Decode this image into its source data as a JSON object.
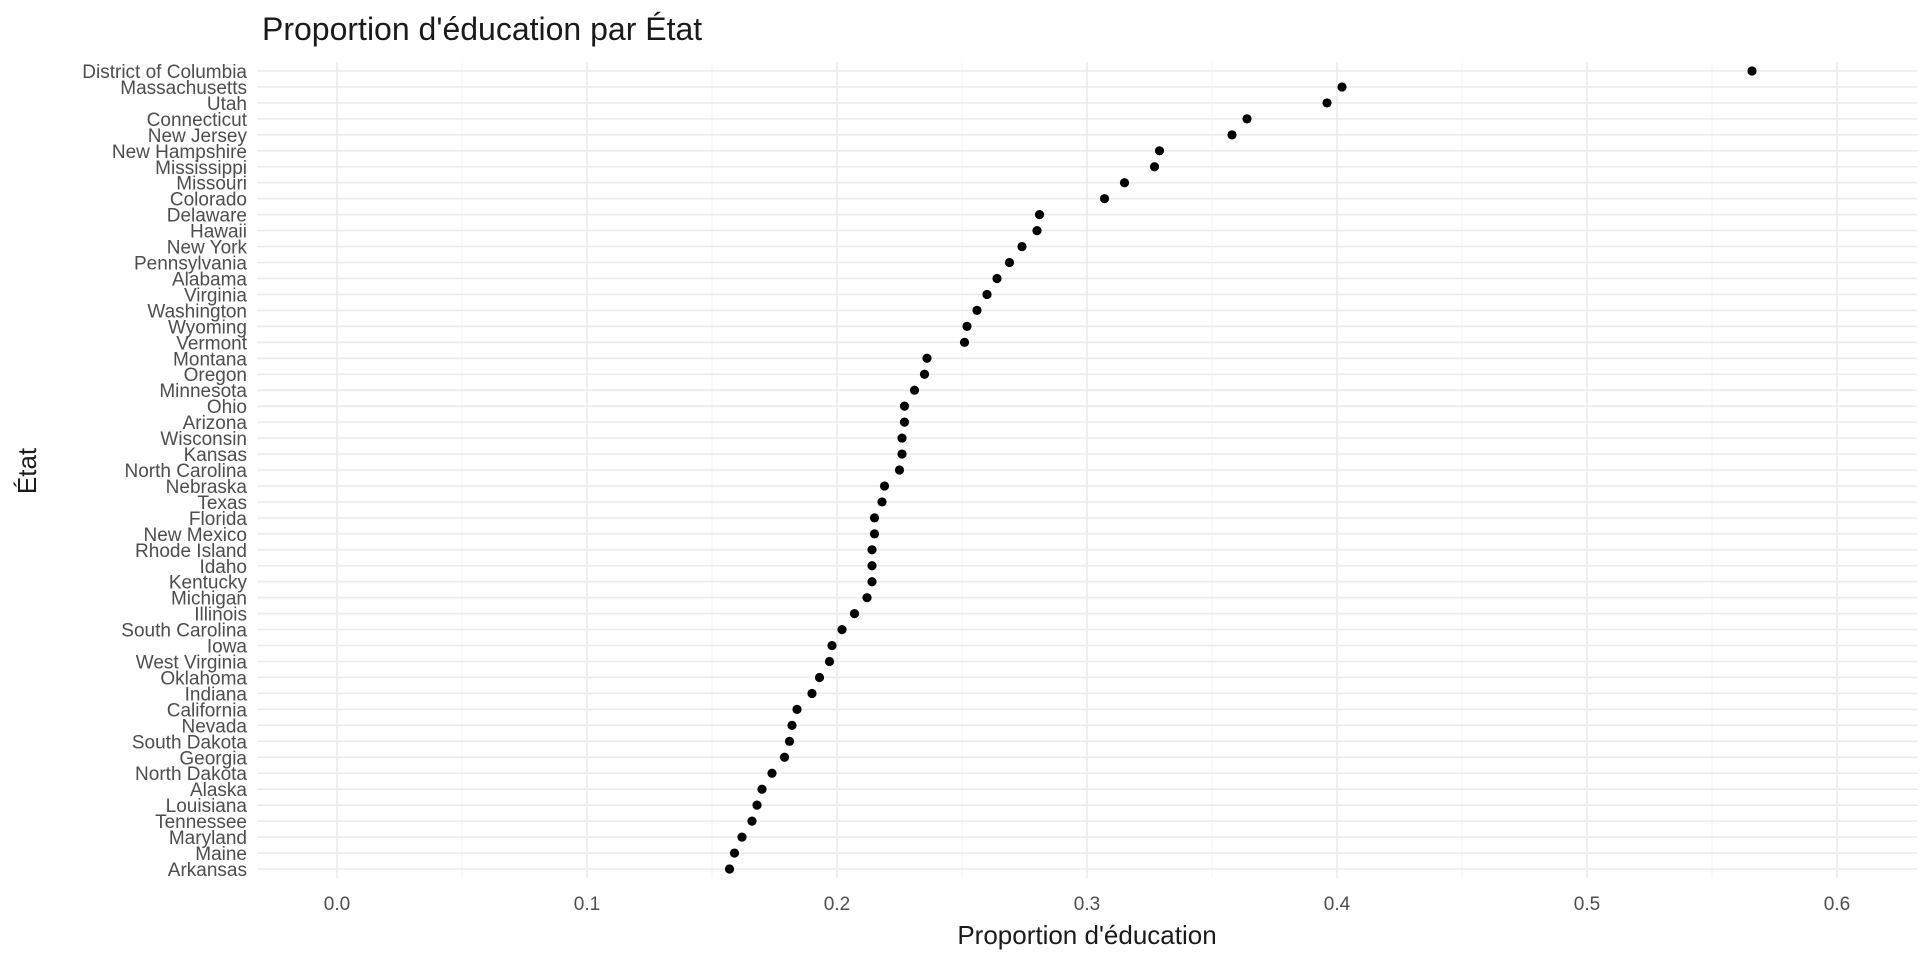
{
  "chart_data": {
    "type": "scatter",
    "title": "Proportion d'éducation par État",
    "xlabel": "Proportion d'éducation",
    "ylabel": "État",
    "xlim": [
      -0.032,
      0.632
    ],
    "x_ticks": [
      0.0,
      0.1,
      0.2,
      0.3,
      0.4,
      0.5,
      0.6
    ],
    "x_tick_labels": [
      "0.0",
      "0.1",
      "0.2",
      "0.3",
      "0.4",
      "0.5",
      "0.6"
    ],
    "grid": true,
    "point_color": "#000000",
    "states": [
      "District of Columbia",
      "Massachusetts",
      "Utah",
      "Connecticut",
      "New Jersey",
      "New Hampshire",
      "Mississippi",
      "Missouri",
      "Colorado",
      "Delaware",
      "Hawaii",
      "New York",
      "Pennsylvania",
      "Alabama",
      "Virginia",
      "Washington",
      "Wyoming",
      "Vermont",
      "Montana",
      "Oregon",
      "Minnesota",
      "Ohio",
      "Arizona",
      "Wisconsin",
      "Kansas",
      "North Carolina",
      "Nebraska",
      "Texas",
      "Florida",
      "New Mexico",
      "Rhode Island",
      "Idaho",
      "Kentucky",
      "Michigan",
      "Illinois",
      "South Carolina",
      "Iowa",
      "West Virginia",
      "Oklahoma",
      "Indiana",
      "California",
      "Nevada",
      "South Dakota",
      "Georgia",
      "North Dakota",
      "Alaska",
      "Louisiana",
      "Tennessee",
      "Maryland",
      "Maine",
      "Arkansas"
    ],
    "values": [
      0.566,
      0.402,
      0.396,
      0.364,
      0.358,
      0.329,
      0.327,
      0.315,
      0.307,
      0.281,
      0.28,
      0.274,
      0.269,
      0.264,
      0.26,
      0.256,
      0.252,
      0.251,
      0.236,
      0.235,
      0.231,
      0.227,
      0.227,
      0.226,
      0.226,
      0.225,
      0.219,
      0.218,
      0.215,
      0.215,
      0.214,
      0.214,
      0.214,
      0.212,
      0.207,
      0.202,
      0.198,
      0.197,
      0.193,
      0.19,
      0.184,
      0.182,
      0.181,
      0.179,
      0.174,
      0.17,
      0.168,
      0.166,
      0.162,
      0.159,
      0.157
    ]
  }
}
